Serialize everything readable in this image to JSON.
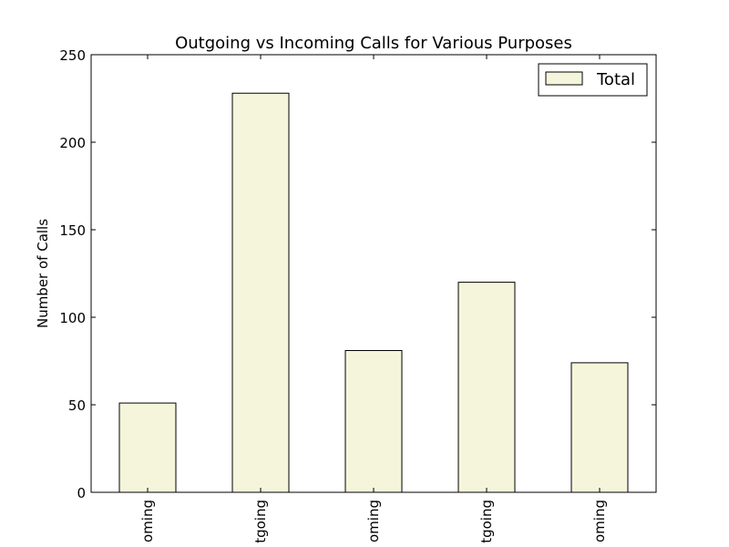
{
  "chart_data": {
    "type": "bar",
    "title": "Outgoing vs Incoming Calls for Various Purposes",
    "xlabel": "",
    "ylabel": "Number of Calls",
    "categories": [
      "oming",
      "tgoing",
      "oming",
      "tgoing",
      "oming"
    ],
    "series": [
      {
        "name": "Total",
        "values": [
          51,
          228,
          81,
          120,
          74
        ]
      }
    ],
    "ylim": [
      0,
      250
    ],
    "yticks": [
      0,
      50,
      100,
      150,
      200,
      250
    ],
    "grid": false,
    "legend": "top-right",
    "colors": {
      "bar_fill": "#f5f5dc",
      "bar_edge": "#000000"
    }
  }
}
